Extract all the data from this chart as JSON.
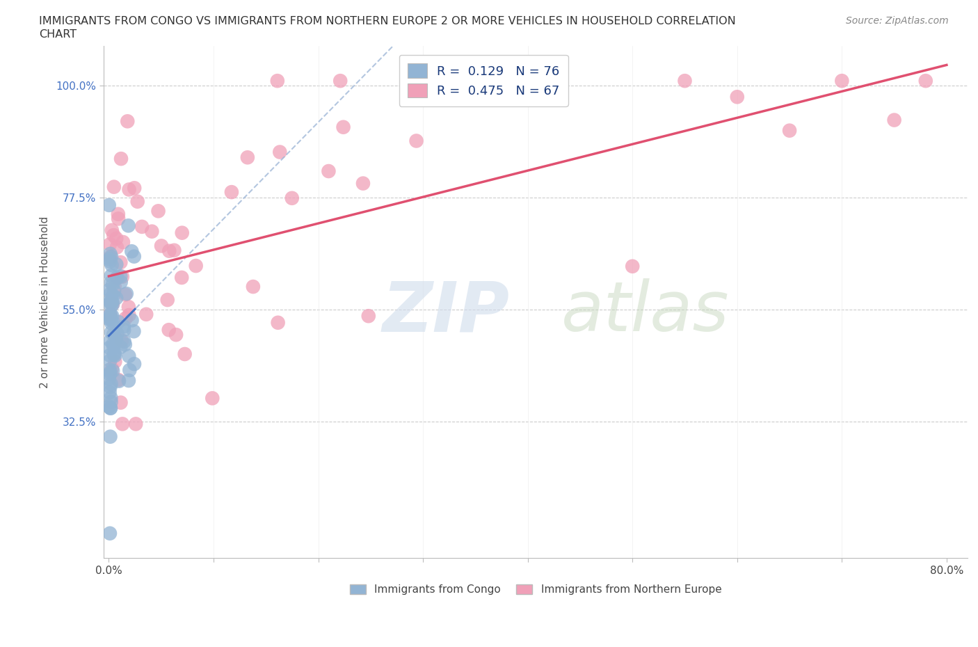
{
  "title_line1": "IMMIGRANTS FROM CONGO VS IMMIGRANTS FROM NORTHERN EUROPE 2 OR MORE VEHICLES IN HOUSEHOLD CORRELATION",
  "title_line2": "CHART",
  "source": "Source: ZipAtlas.com",
  "ylabel": "2 or more Vehicles in Household",
  "xlim": [
    -0.005,
    0.82
  ],
  "ylim": [
    0.05,
    1.08
  ],
  "xtick_vals": [
    0.0,
    0.1,
    0.2,
    0.3,
    0.4,
    0.5,
    0.6,
    0.7,
    0.8
  ],
  "xticklabels": [
    "0.0%",
    "",
    "",
    "",
    "",
    "",
    "",
    "",
    "80.0%"
  ],
  "ytick_vals": [
    0.325,
    0.55,
    0.775,
    1.0
  ],
  "ytick_labels": [
    "32.5%",
    "55.0%",
    "77.5%",
    "100.0%"
  ],
  "congo_R": 0.129,
  "congo_N": 76,
  "northern_R": 0.475,
  "northern_N": 67,
  "congo_color": "#92b4d4",
  "northern_color": "#f0a0b8",
  "congo_line_color": "#4472c4",
  "northern_line_color": "#e05070",
  "congo_line_style": "solid",
  "northern_line_style": "solid",
  "dashed_line_color": "#a0b8d8",
  "watermark_zip_color": "#ccd8e8",
  "watermark_atlas_color": "#c8d4b0"
}
